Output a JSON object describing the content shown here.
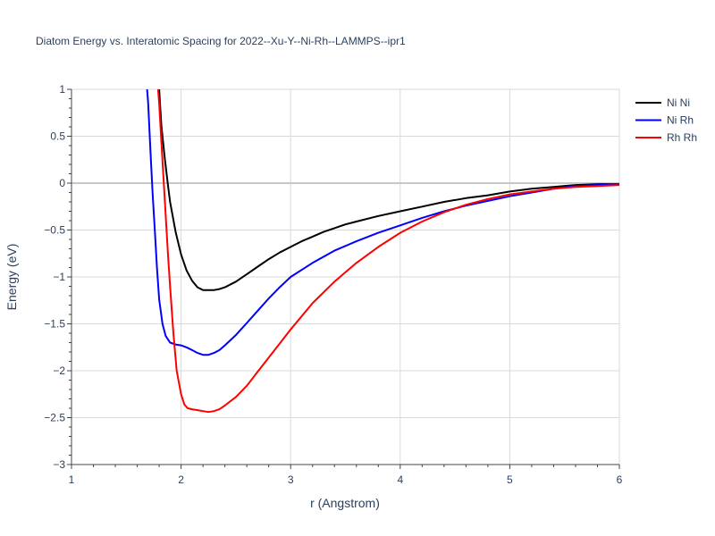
{
  "chart_data": {
    "type": "line",
    "title": "Diatom Energy vs. Interatomic Spacing for 2022--Xu-Y--Ni-Rh--LAMMPS--ipr1",
    "xlabel": "r (Angstrom)",
    "ylabel": "Energy (eV)",
    "xlim": [
      1,
      6
    ],
    "ylim": [
      -3,
      1
    ],
    "xticks": [
      1,
      2,
      3,
      4,
      5,
      6
    ],
    "yticks": [
      1,
      0.5,
      0,
      -0.5,
      -1,
      -1.5,
      -2,
      -2.5,
      -3
    ],
    "xtick_labels": [
      "1",
      "2",
      "3",
      "4",
      "5",
      "6"
    ],
    "ytick_labels": [
      "1",
      "0.5",
      "0",
      "−0.5",
      "−1",
      "−1.5",
      "−2",
      "−2.5",
      "−3"
    ],
    "grid": true,
    "legend_position": "top-right",
    "series": [
      {
        "name": "Ni Ni",
        "color": "#000000",
        "x": [
          1.8,
          1.82,
          1.85,
          1.88,
          1.9,
          1.95,
          2.0,
          2.05,
          2.1,
          2.15,
          2.2,
          2.25,
          2.3,
          2.35,
          2.4,
          2.5,
          2.6,
          2.7,
          2.8,
          2.9,
          3.0,
          3.1,
          3.2,
          3.3,
          3.4,
          3.5,
          3.6,
          3.8,
          4.0,
          4.2,
          4.4,
          4.6,
          4.8,
          5.0,
          5.2,
          5.4,
          5.6,
          5.8,
          6.0
        ],
        "y": [
          1.0,
          0.62,
          0.28,
          -0.02,
          -0.2,
          -0.52,
          -0.76,
          -0.93,
          -1.04,
          -1.11,
          -1.14,
          -1.14,
          -1.14,
          -1.13,
          -1.11,
          -1.05,
          -0.97,
          -0.89,
          -0.81,
          -0.74,
          -0.68,
          -0.62,
          -0.57,
          -0.52,
          -0.48,
          -0.44,
          -0.41,
          -0.35,
          -0.3,
          -0.25,
          -0.2,
          -0.16,
          -0.13,
          -0.09,
          -0.06,
          -0.04,
          -0.02,
          -0.01,
          -0.01
        ]
      },
      {
        "name": "Ni Rh",
        "color": "#0000ff",
        "x": [
          1.69,
          1.7,
          1.72,
          1.74,
          1.76,
          1.78,
          1.8,
          1.83,
          1.86,
          1.9,
          1.95,
          2.0,
          2.05,
          2.1,
          2.15,
          2.2,
          2.25,
          2.3,
          2.35,
          2.4,
          2.5,
          2.6,
          2.7,
          2.8,
          2.9,
          3.0,
          3.2,
          3.4,
          3.6,
          3.8,
          4.0,
          4.2,
          4.4,
          4.6,
          4.8,
          5.0,
          5.2,
          5.4,
          5.6,
          5.8,
          6.0
        ],
        "y": [
          1.0,
          0.85,
          0.35,
          -0.1,
          -0.5,
          -0.9,
          -1.24,
          -1.5,
          -1.63,
          -1.7,
          -1.72,
          -1.73,
          -1.75,
          -1.78,
          -1.81,
          -1.83,
          -1.83,
          -1.81,
          -1.78,
          -1.73,
          -1.62,
          -1.49,
          -1.36,
          -1.23,
          -1.11,
          -1.0,
          -0.85,
          -0.72,
          -0.62,
          -0.53,
          -0.45,
          -0.37,
          -0.3,
          -0.24,
          -0.19,
          -0.14,
          -0.1,
          -0.06,
          -0.03,
          -0.02,
          -0.01
        ]
      },
      {
        "name": "Rh Rh",
        "color": "#ff0000",
        "x": [
          1.79,
          1.8,
          1.82,
          1.85,
          1.88,
          1.9,
          1.93,
          1.96,
          2.0,
          2.03,
          2.06,
          2.1,
          2.15,
          2.2,
          2.25,
          2.3,
          2.35,
          2.4,
          2.5,
          2.6,
          2.7,
          2.8,
          2.9,
          3.0,
          3.2,
          3.4,
          3.6,
          3.8,
          4.0,
          4.2,
          4.4,
          4.6,
          4.8,
          5.0,
          5.2,
          5.4,
          5.6,
          5.8,
          6.0
        ],
        "y": [
          1.0,
          0.85,
          0.45,
          -0.15,
          -0.75,
          -1.1,
          -1.6,
          -2.0,
          -2.25,
          -2.36,
          -2.4,
          -2.41,
          -2.42,
          -2.43,
          -2.44,
          -2.43,
          -2.41,
          -2.37,
          -2.28,
          -2.16,
          -2.01,
          -1.86,
          -1.71,
          -1.56,
          -1.28,
          -1.05,
          -0.85,
          -0.68,
          -0.53,
          -0.41,
          -0.31,
          -0.23,
          -0.17,
          -0.12,
          -0.09,
          -0.06,
          -0.04,
          -0.03,
          -0.02
        ]
      }
    ]
  }
}
